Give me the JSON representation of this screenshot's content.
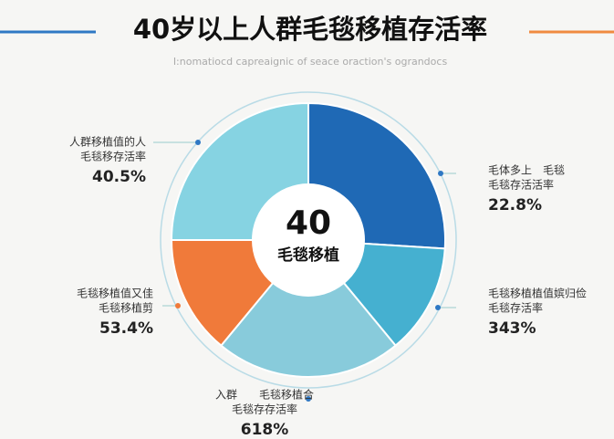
{
  "chart_data": {
    "type": "pie",
    "title": "40岁以上人群毛毯移植存活率",
    "subtitle": "I:nomatiocd capreaignic of seace oraction's ograndocs",
    "center_label": {
      "number": "40",
      "text": "毛毯移植"
    },
    "series": [
      {
        "values": [
          26,
          13,
          22,
          14,
          25
        ],
        "colors": [
          "#1f69b5",
          "#45b0d0",
          "#88cbdb",
          "#f07a3a",
          "#86d3e2"
        ]
      }
    ],
    "annotations": [
      {
        "lines": [
          "毛体多上　毛毯",
          "毛毯存活活率"
        ],
        "value": "22.8%"
      },
      {
        "lines": [
          "毛毯移植植值嫔归俭",
          "毛毯存活率"
        ],
        "value": "343%"
      },
      {
        "lines": [
          "入群　　毛毯移植合",
          "毛毯存存活率"
        ],
        "value": "618%"
      },
      {
        "lines": [
          "毛毯移植值又佳",
          "毛毯移植剪"
        ],
        "value": "53.4%"
      },
      {
        "lines": [
          "人群移植值的人",
          "毛毯移存活率"
        ],
        "value": "40.5%"
      }
    ]
  }
}
